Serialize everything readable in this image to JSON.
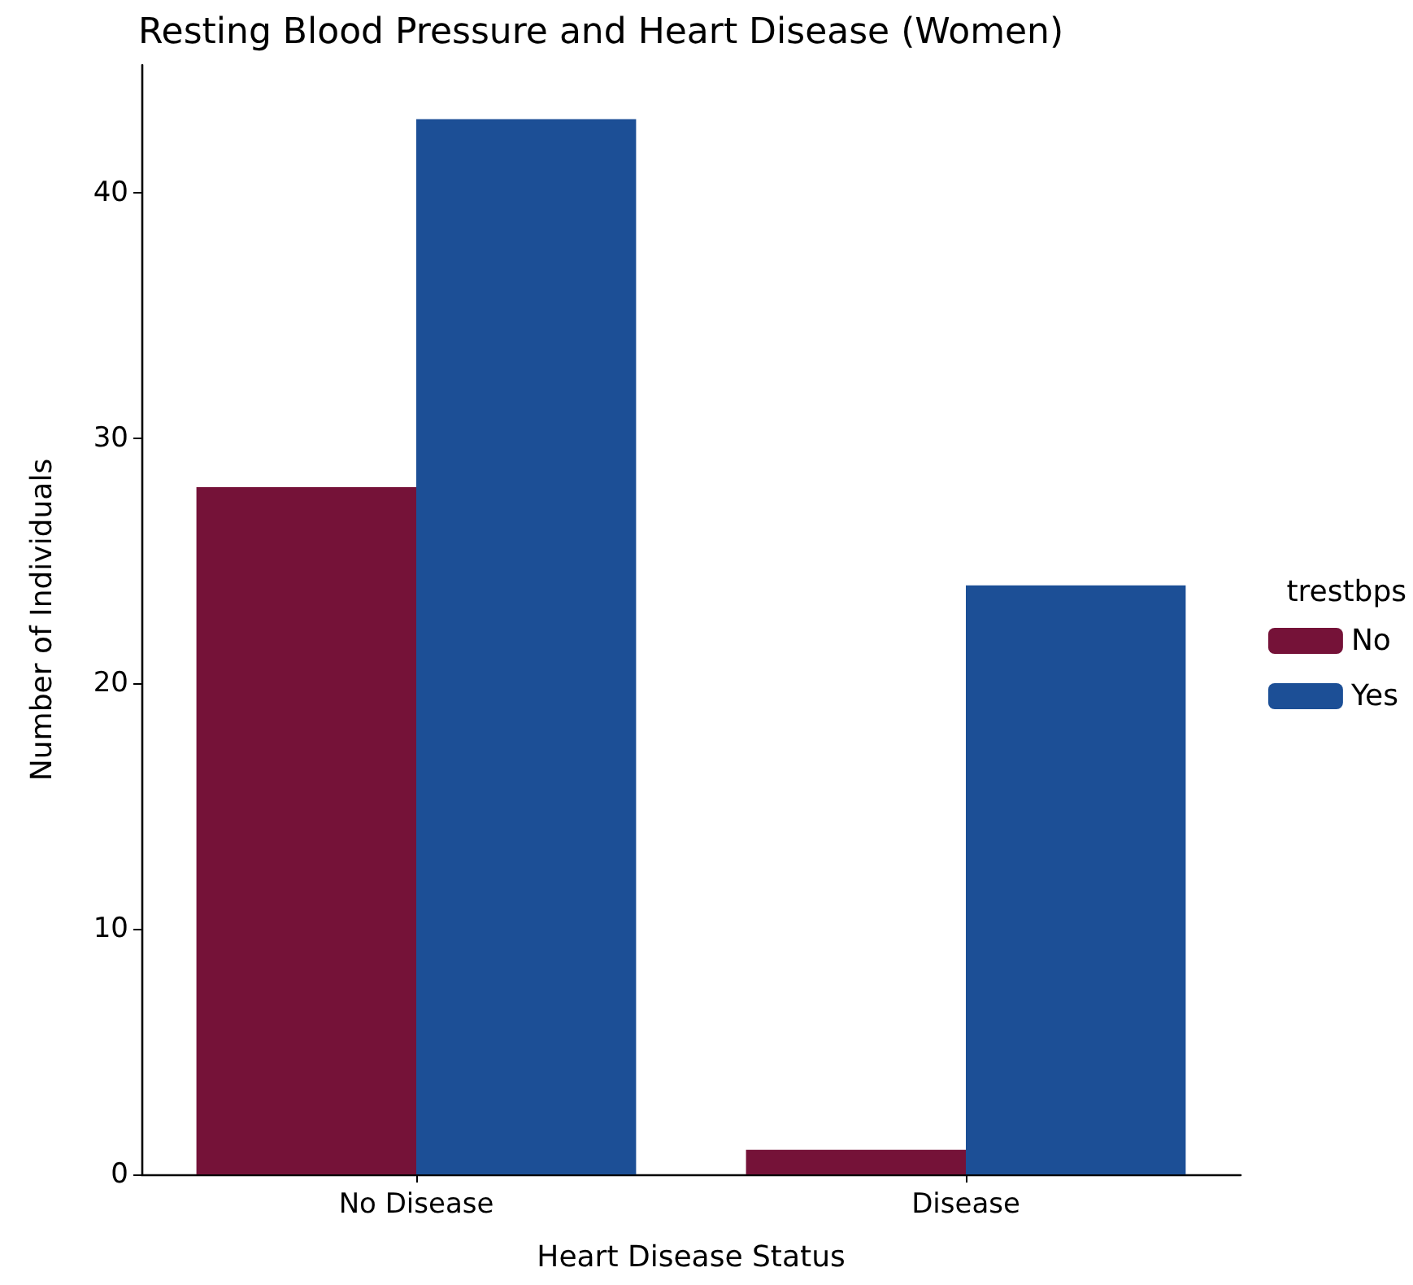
{
  "chart_data": {
    "type": "bar",
    "title": "Resting Blood Pressure and Heart Disease (Women)",
    "xlabel": "Heart Disease Status",
    "ylabel": "Number of Individuals",
    "legend_title": "trestbps",
    "categories": [
      "No Disease",
      "Disease"
    ],
    "series": [
      {
        "name": "No",
        "color": "#751238",
        "values": [
          28,
          1
        ]
      },
      {
        "name": "Yes",
        "color": "#1c4f96",
        "values": [
          43,
          24
        ]
      }
    ],
    "ylim": [
      0,
      45.2
    ],
    "yticks": [
      0,
      10,
      20,
      30,
      40
    ],
    "grid": false,
    "legend": "right"
  }
}
